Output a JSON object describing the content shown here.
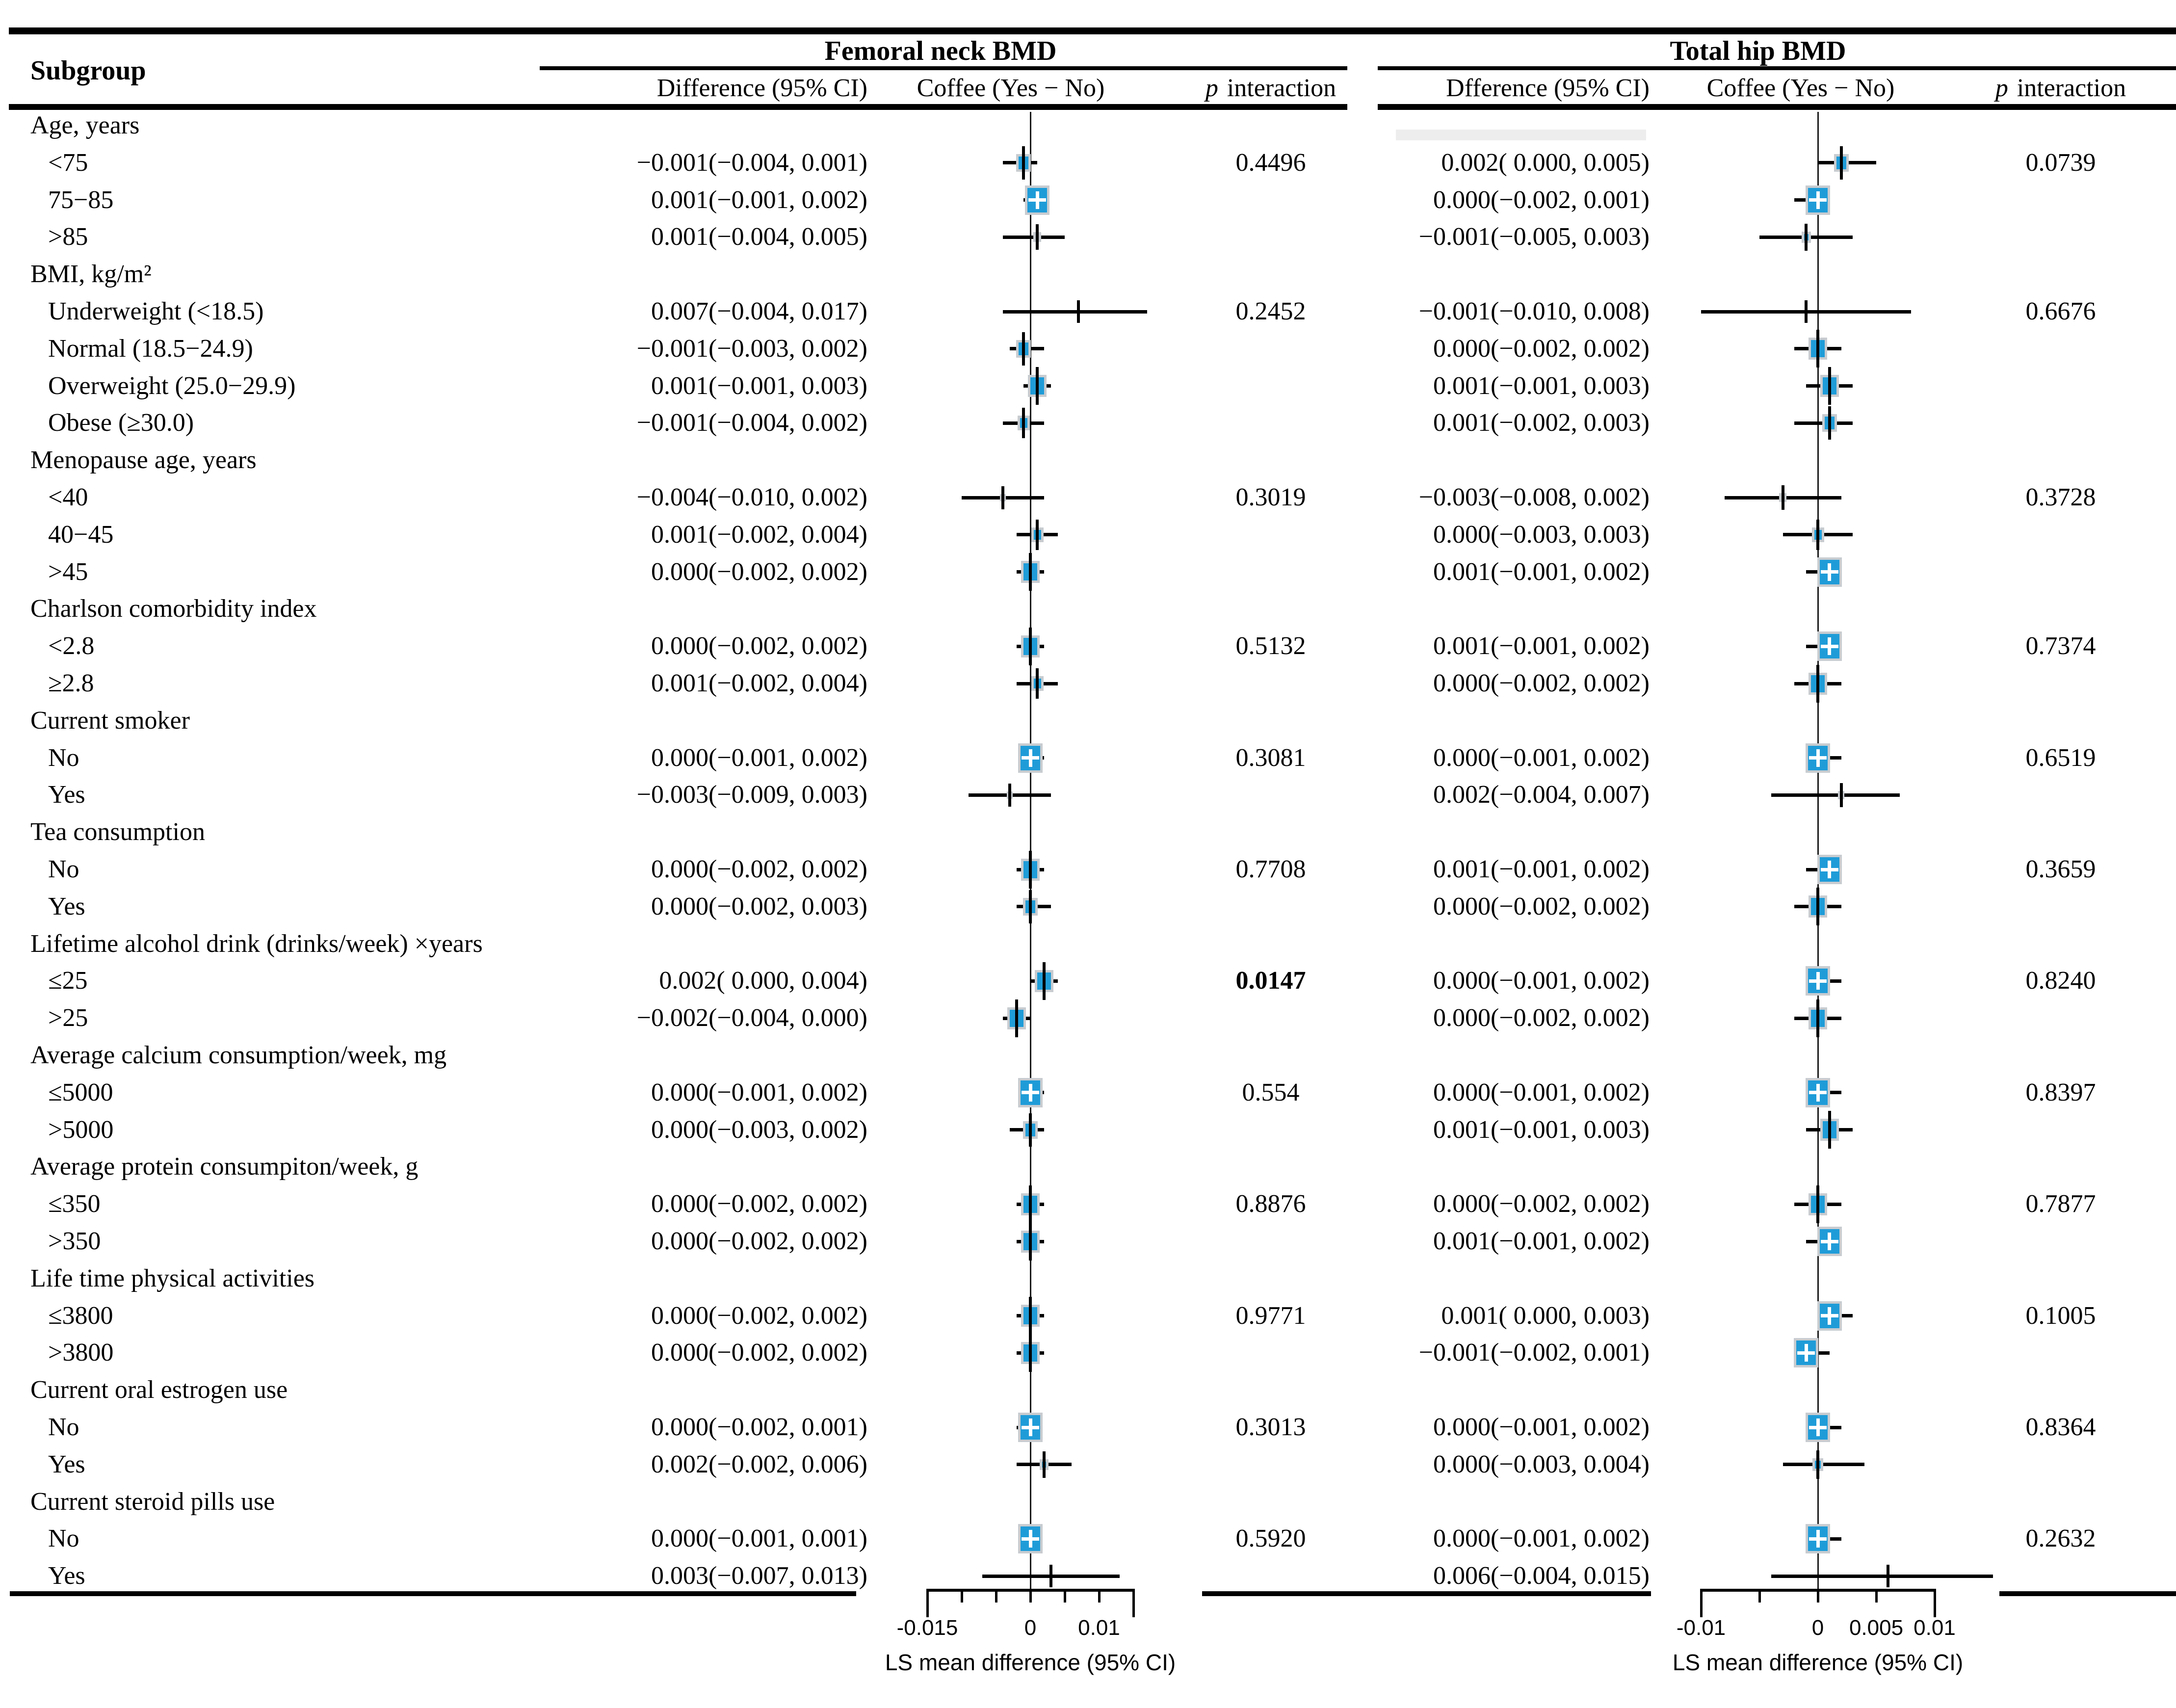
{
  "header": {
    "subgroup": "Subgroup",
    "panels": [
      {
        "title": "Femoral neck BMD",
        "diff": "Difference (95% CI)",
        "coffee": "Coffee (Yes − No)",
        "p_italic": "p",
        "p_rest": "interaction"
      },
      {
        "title": "Total hip BMD",
        "diff": "Dfference (95% CI)",
        "coffee": "Coffee (Yes − No)",
        "p_italic": "p",
        "p_rest": "interaction"
      }
    ]
  },
  "colors": {
    "marker_fill": "#1F9CD8",
    "marker_border": "#C8CCD0",
    "ci_line": "#000000",
    "axis": "#000000"
  },
  "chart_data": {
    "type": "forest",
    "panels": [
      {
        "name": "femoral-neck-bmd",
        "xlabel": "LS mean difference (95% CI)",
        "axis_ticks": [
          -0.015,
          -0.01,
          -0.005,
          0,
          0.005,
          0.01,
          0.015
        ],
        "axis_tick_labels": {
          "-0.015": "-0.015",
          "0": "0",
          "0.01": "0.01"
        },
        "xlim": [
          -0.0155,
          0.0155
        ]
      },
      {
        "name": "total-hip-bmd",
        "xlabel": "LS mean difference (95% CI)",
        "axis_ticks": [
          -0.01,
          -0.005,
          0,
          0.005,
          0.01
        ],
        "axis_tick_labels": {
          "-0.01": "-0.01",
          "0": "0",
          "0.005": "0.005",
          "0.01": "0.01"
        },
        "xlim": [
          -0.0105,
          0.0105
        ]
      }
    ],
    "rows": [
      {
        "kind": "group",
        "label": "Age, years"
      },
      {
        "kind": "data",
        "label": "<75",
        "fn": {
          "text": "−0.001(−0.004, 0.001)",
          "est": -0.001,
          "lo": -0.004,
          "hi": 0.001,
          "p": "0.4496"
        },
        "th": {
          "text": "0.002( 0.000, 0.005)",
          "est": 0.002,
          "lo": 0.0,
          "hi": 0.005,
          "p": "0.0739"
        }
      },
      {
        "kind": "data",
        "label": "75−85",
        "fn": {
          "text": "0.001(−0.001, 0.002)",
          "est": 0.001,
          "lo": -0.001,
          "hi": 0.002
        },
        "th": {
          "text": "0.000(−0.002, 0.001)",
          "est": 0.0,
          "lo": -0.002,
          "hi": 0.001
        }
      },
      {
        "kind": "data",
        "label": ">85",
        "fn": {
          "text": "0.001(−0.004, 0.005)",
          "est": 0.001,
          "lo": -0.004,
          "hi": 0.005
        },
        "th": {
          "text": "−0.001(−0.005, 0.003)",
          "est": -0.001,
          "lo": -0.005,
          "hi": 0.003
        }
      },
      {
        "kind": "group",
        "label": "BMI, kg/m²"
      },
      {
        "kind": "data",
        "label": "Underweight (<18.5)",
        "fn": {
          "text": "0.007(−0.004, 0.017)",
          "est": 0.007,
          "lo": -0.004,
          "hi": 0.017,
          "p": "0.2452"
        },
        "th": {
          "text": "−0.001(−0.010, 0.008)",
          "est": -0.001,
          "lo": -0.01,
          "hi": 0.008,
          "p": "0.6676"
        }
      },
      {
        "kind": "data",
        "label": "Normal (18.5−24.9)",
        "fn": {
          "text": "−0.001(−0.003, 0.002)",
          "est": -0.001,
          "lo": -0.003,
          "hi": 0.002
        },
        "th": {
          "text": "0.000(−0.002, 0.002)",
          "est": 0.0,
          "lo": -0.002,
          "hi": 0.002
        }
      },
      {
        "kind": "data",
        "label": "Overweight (25.0−29.9)",
        "fn": {
          "text": "0.001(−0.001, 0.003)",
          "est": 0.001,
          "lo": -0.001,
          "hi": 0.003
        },
        "th": {
          "text": "0.001(−0.001, 0.003)",
          "est": 0.001,
          "lo": -0.001,
          "hi": 0.003
        }
      },
      {
        "kind": "data",
        "label": "Obese (≥30.0)",
        "fn": {
          "text": "−0.001(−0.004, 0.002)",
          "est": -0.001,
          "lo": -0.004,
          "hi": 0.002
        },
        "th": {
          "text": "0.001(−0.002, 0.003)",
          "est": 0.001,
          "lo": -0.002,
          "hi": 0.003
        }
      },
      {
        "kind": "group",
        "label": "Menopause age, years"
      },
      {
        "kind": "data",
        "label": "<40",
        "fn": {
          "text": "−0.004(−0.010, 0.002)",
          "est": -0.004,
          "lo": -0.01,
          "hi": 0.002,
          "p": "0.3019"
        },
        "th": {
          "text": "−0.003(−0.008, 0.002)",
          "est": -0.003,
          "lo": -0.008,
          "hi": 0.002,
          "p": "0.3728"
        }
      },
      {
        "kind": "data",
        "label": "40−45",
        "fn": {
          "text": "0.001(−0.002, 0.004)",
          "est": 0.001,
          "lo": -0.002,
          "hi": 0.004
        },
        "th": {
          "text": "0.000(−0.003, 0.003)",
          "est": 0.0,
          "lo": -0.003,
          "hi": 0.003
        }
      },
      {
        "kind": "data",
        "label": ">45",
        "fn": {
          "text": "0.000(−0.002, 0.002)",
          "est": 0.0,
          "lo": -0.002,
          "hi": 0.002
        },
        "th": {
          "text": "0.001(−0.001, 0.002)",
          "est": 0.001,
          "lo": -0.001,
          "hi": 0.002
        }
      },
      {
        "kind": "group",
        "label": "Charlson comorbidity index"
      },
      {
        "kind": "data",
        "label": "<2.8",
        "fn": {
          "text": "0.000(−0.002, 0.002)",
          "est": 0.0,
          "lo": -0.002,
          "hi": 0.002,
          "p": "0.5132"
        },
        "th": {
          "text": "0.001(−0.001, 0.002)",
          "est": 0.001,
          "lo": -0.001,
          "hi": 0.002,
          "p": "0.7374"
        }
      },
      {
        "kind": "data",
        "label": "≥2.8",
        "fn": {
          "text": "0.001(−0.002, 0.004)",
          "est": 0.001,
          "lo": -0.002,
          "hi": 0.004
        },
        "th": {
          "text": "0.000(−0.002, 0.002)",
          "est": 0.0,
          "lo": -0.002,
          "hi": 0.002
        }
      },
      {
        "kind": "group",
        "label": "Current smoker"
      },
      {
        "kind": "data",
        "label": "No",
        "fn": {
          "text": "0.000(−0.001, 0.002)",
          "est": 0.0,
          "lo": -0.001,
          "hi": 0.002,
          "p": "0.3081"
        },
        "th": {
          "text": "0.000(−0.001, 0.002)",
          "est": 0.0,
          "lo": -0.001,
          "hi": 0.002,
          "p": "0.6519"
        }
      },
      {
        "kind": "data",
        "label": "Yes",
        "fn": {
          "text": "−0.003(−0.009, 0.003)",
          "est": -0.003,
          "lo": -0.009,
          "hi": 0.003
        },
        "th": {
          "text": "0.002(−0.004, 0.007)",
          "est": 0.002,
          "lo": -0.004,
          "hi": 0.007
        }
      },
      {
        "kind": "group",
        "label": "Tea consumption"
      },
      {
        "kind": "data",
        "label": "No",
        "fn": {
          "text": "0.000(−0.002, 0.002)",
          "est": 0.0,
          "lo": -0.002,
          "hi": 0.002,
          "p": "0.7708"
        },
        "th": {
          "text": "0.001(−0.001, 0.002)",
          "est": 0.001,
          "lo": -0.001,
          "hi": 0.002,
          "p": "0.3659"
        }
      },
      {
        "kind": "data",
        "label": "Yes",
        "fn": {
          "text": "0.000(−0.002, 0.003)",
          "est": 0.0,
          "lo": -0.002,
          "hi": 0.003
        },
        "th": {
          "text": "0.000(−0.002, 0.002)",
          "est": 0.0,
          "lo": -0.002,
          "hi": 0.002
        }
      },
      {
        "kind": "group",
        "label": "Lifetime alcohol drink (drinks/week) ×years"
      },
      {
        "kind": "data",
        "label": "≤25",
        "fn": {
          "text": "0.002( 0.000, 0.004)",
          "est": 0.002,
          "lo": 0.0,
          "hi": 0.004,
          "p": "0.0147",
          "p_bold": true
        },
        "th": {
          "text": "0.000(−0.001, 0.002)",
          "est": 0.0,
          "lo": -0.001,
          "hi": 0.002,
          "p": "0.8240"
        }
      },
      {
        "kind": "data",
        "label": ">25",
        "fn": {
          "text": "−0.002(−0.004, 0.000)",
          "est": -0.002,
          "lo": -0.004,
          "hi": 0.0
        },
        "th": {
          "text": "0.000(−0.002, 0.002)",
          "est": 0.0,
          "lo": -0.002,
          "hi": 0.002
        }
      },
      {
        "kind": "group",
        "label": "Average calcium consumption/week, mg"
      },
      {
        "kind": "data",
        "label": "≤5000",
        "fn": {
          "text": "0.000(−0.001, 0.002)",
          "est": 0.0,
          "lo": -0.001,
          "hi": 0.002,
          "p": "0.554"
        },
        "th": {
          "text": "0.000(−0.001, 0.002)",
          "est": 0.0,
          "lo": -0.001,
          "hi": 0.002,
          "p": "0.8397"
        }
      },
      {
        "kind": "data",
        "label": ">5000",
        "fn": {
          "text": "0.000(−0.003, 0.002)",
          "est": 0.0,
          "lo": -0.003,
          "hi": 0.002
        },
        "th": {
          "text": "0.001(−0.001, 0.003)",
          "est": 0.001,
          "lo": -0.001,
          "hi": 0.003
        }
      },
      {
        "kind": "group",
        "label": "Average protein consumpiton/week, g"
      },
      {
        "kind": "data",
        "label": "≤350",
        "fn": {
          "text": "0.000(−0.002, 0.002)",
          "est": 0.0,
          "lo": -0.002,
          "hi": 0.002,
          "p": "0.8876"
        },
        "th": {
          "text": "0.000(−0.002, 0.002)",
          "est": 0.0,
          "lo": -0.002,
          "hi": 0.002,
          "p": "0.7877"
        }
      },
      {
        "kind": "data",
        "label": ">350",
        "fn": {
          "text": "0.000(−0.002, 0.002)",
          "est": 0.0,
          "lo": -0.002,
          "hi": 0.002
        },
        "th": {
          "text": "0.001(−0.001, 0.002)",
          "est": 0.001,
          "lo": -0.001,
          "hi": 0.002
        }
      },
      {
        "kind": "group",
        "label": "Life time physical activities"
      },
      {
        "kind": "data",
        "label": "≤3800",
        "fn": {
          "text": "0.000(−0.002, 0.002)",
          "est": 0.0,
          "lo": -0.002,
          "hi": 0.002,
          "p": "0.9771"
        },
        "th": {
          "text": "0.001( 0.000, 0.003)",
          "est": 0.001,
          "lo": 0.0,
          "hi": 0.003,
          "p": "0.1005"
        }
      },
      {
        "kind": "data",
        "label": ">3800",
        "fn": {
          "text": "0.000(−0.002, 0.002)",
          "est": 0.0,
          "lo": -0.002,
          "hi": 0.002
        },
        "th": {
          "text": "−0.001(−0.002, 0.001)",
          "est": -0.001,
          "lo": -0.002,
          "hi": 0.001
        }
      },
      {
        "kind": "group",
        "label": "Current oral estrogen use"
      },
      {
        "kind": "data",
        "label": "No",
        "fn": {
          "text": "0.000(−0.002, 0.001)",
          "est": 0.0,
          "lo": -0.002,
          "hi": 0.001,
          "p": "0.3013"
        },
        "th": {
          "text": "0.000(−0.001, 0.002)",
          "est": 0.0,
          "lo": -0.001,
          "hi": 0.002,
          "p": "0.8364"
        }
      },
      {
        "kind": "data",
        "label": "Yes",
        "fn": {
          "text": "0.002(−0.002, 0.006)",
          "est": 0.002,
          "lo": -0.002,
          "hi": 0.006
        },
        "th": {
          "text": "0.000(−0.003, 0.004)",
          "est": 0.0,
          "lo": -0.003,
          "hi": 0.004
        }
      },
      {
        "kind": "group",
        "label": "Current steroid pills use"
      },
      {
        "kind": "data",
        "label": "No",
        "fn": {
          "text": "0.000(−0.001, 0.001)",
          "est": 0.0,
          "lo": -0.001,
          "hi": 0.001,
          "p": "0.5920"
        },
        "th": {
          "text": "0.000(−0.001, 0.002)",
          "est": 0.0,
          "lo": -0.001,
          "hi": 0.002,
          "p": "0.2632"
        }
      },
      {
        "kind": "data",
        "label": "Yes",
        "fn": {
          "text": "0.003(−0.007, 0.013)",
          "est": 0.003,
          "lo": -0.007,
          "hi": 0.013
        },
        "th": {
          "text": "0.006(−0.004, 0.015)",
          "est": 0.006,
          "lo": -0.004,
          "hi": 0.015
        }
      }
    ]
  }
}
